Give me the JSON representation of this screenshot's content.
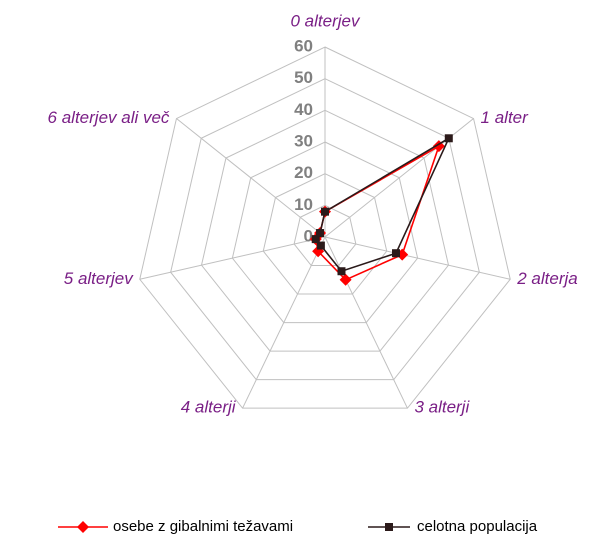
{
  "chart_data": {
    "type": "radar",
    "categories": [
      "0 alterjev",
      "1 alter",
      "2 alterja",
      "3 alterji",
      "4 alterji",
      "5 alterjev",
      "6 alterjev ali več"
    ],
    "ylim": [
      0,
      60
    ],
    "yticks": [
      0,
      10,
      20,
      30,
      40,
      50,
      60
    ],
    "grid": true,
    "legend": "bottom",
    "series": [
      {
        "name": "osebe z gibalnimi težavami",
        "color": "#ff0000",
        "marker": "diamond",
        "values": [
          8,
          46,
          25,
          15,
          5,
          3,
          2
        ]
      },
      {
        "name": "celotna populacija",
        "color": "#2b1a1a",
        "marker": "square",
        "values": [
          8,
          50,
          23,
          12,
          3,
          3,
          2
        ]
      }
    ]
  }
}
